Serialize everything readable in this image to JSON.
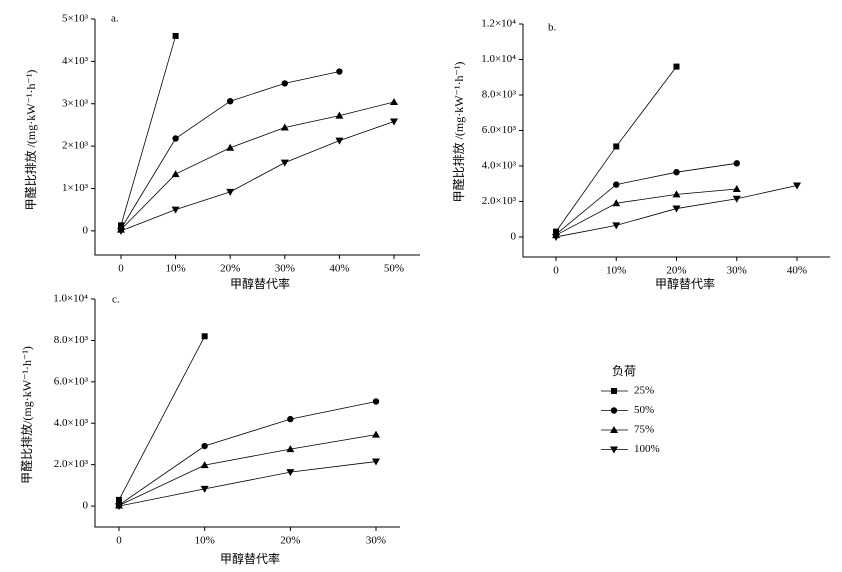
{
  "chart_data": [
    {
      "type": "line",
      "panel_label": "a.",
      "ylabel": "甲醛比排放 /(mg·kW⁻¹·h⁻¹)",
      "xlabel": "甲醇替代率",
      "categories": [
        "0",
        "10%",
        "20%",
        "30%",
        "40%",
        "50%"
      ],
      "ylim": [
        -570,
        5000
      ],
      "yticks": [
        0,
        {
          "value": 1000,
          "label": "1×10³"
        },
        {
          "value": 2000,
          "label": "2×10³"
        },
        {
          "value": 3000,
          "label": "3×10³"
        },
        {
          "value": 4000,
          "label": "4×10³"
        },
        {
          "value": 5000,
          "label": "5×10³"
        }
      ],
      "series": [
        {
          "color": "#000000",
          "marker": "square",
          "values": [
            130,
            4600,
            null,
            null,
            null,
            null
          ]
        },
        {
          "color": "#000000",
          "marker": "circle",
          "values": [
            50,
            2180,
            3060,
            3480,
            3760,
            null
          ]
        },
        {
          "color": "#000000",
          "marker": "triangle-up",
          "values": [
            30,
            1340,
            1960,
            2440,
            2720,
            3040
          ]
        },
        {
          "color": "#000000",
          "marker": "triangle-down",
          "values": [
            0,
            500,
            920,
            1610,
            2130,
            2580
          ]
        }
      ]
    },
    {
      "type": "line",
      "panel_label": "b.",
      "ylabel": "甲醛比排放 /(mg·kW⁻¹·h⁻¹)",
      "xlabel": "甲醇替代率",
      "categories": [
        "0",
        "10%",
        "20%",
        "30%",
        "40%"
      ],
      "ylim": [
        -1130,
        12000
      ],
      "yticks": [
        0,
        {
          "value": 2000,
          "label": "2.0×10³"
        },
        {
          "value": 4000,
          "label": "4.0×10³"
        },
        {
          "value": 6000,
          "label": "6.0×10³"
        },
        {
          "value": 8000,
          "label": "8.0×10³"
        },
        {
          "value": 10000,
          "label": "1.0×10⁴"
        },
        {
          "value": 12000,
          "label": "1.2×10⁴"
        }
      ],
      "series": [
        {
          "color": "#000000",
          "marker": "square",
          "values": [
            300,
            5100,
            9600,
            null,
            null
          ]
        },
        {
          "color": "#000000",
          "marker": "circle",
          "values": [
            150,
            2950,
            3650,
            4150,
            null
          ]
        },
        {
          "color": "#000000",
          "marker": "triangle-up",
          "values": [
            100,
            1900,
            2400,
            2700,
            null
          ]
        },
        {
          "color": "#000000",
          "marker": "triangle-down",
          "values": [
            0,
            650,
            1600,
            2150,
            2900
          ]
        }
      ]
    },
    {
      "type": "line",
      "panel_label": "c.",
      "ylabel": "甲醛比排放/(mg·kW⁻¹·h⁻¹)",
      "xlabel": "甲醇替代率",
      "categories": [
        "0",
        "10%",
        "20%",
        "30%"
      ],
      "ylim": [
        -1010,
        10000
      ],
      "yticks": [
        0,
        {
          "value": 2000,
          "label": "2.0×10³"
        },
        {
          "value": 4000,
          "label": "4.0×10³"
        },
        {
          "value": 6000,
          "label": "6.0×10³"
        },
        {
          "value": 8000,
          "label": "8.0×10³"
        },
        {
          "value": 10000,
          "label": "1.0×10⁴"
        }
      ],
      "legend": {
        "title": "负荷"
      },
      "series": [
        {
          "name": "25%",
          "color": "#000000",
          "marker": "square",
          "values": [
            300,
            8200,
            null,
            null
          ]
        },
        {
          "name": "50%",
          "color": "#000000",
          "marker": "circle",
          "values": [
            50,
            2900,
            4200,
            5050
          ]
        },
        {
          "name": "75%",
          "color": "#000000",
          "marker": "triangle-up",
          "values": [
            30,
            1980,
            2750,
            3450
          ]
        },
        {
          "name": "100%",
          "color": "#000000",
          "marker": "triangle-down",
          "values": [
            0,
            830,
            1640,
            2150
          ]
        }
      ]
    }
  ]
}
